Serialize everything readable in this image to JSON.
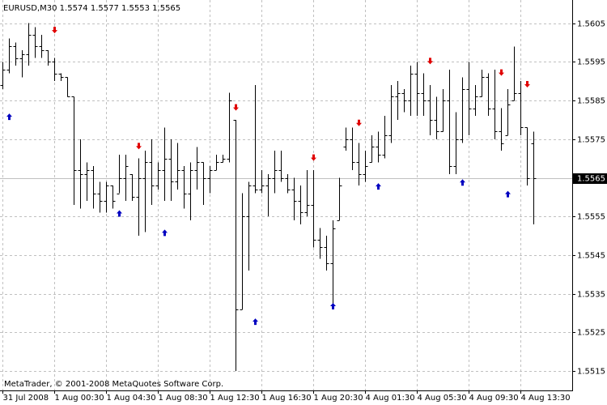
{
  "chart_data": {
    "type": "ohlc",
    "title": "EURUSD,M30  1.5574 1.5577 1.5553 1.5565",
    "footer": "MetaTrader, © 2001-2008 MetaQuotes Software Corp.",
    "categories": [
      "31 Jul 2008",
      null,
      null,
      null,
      null,
      null,
      null,
      null,
      "1 Aug 00:30",
      null,
      null,
      null,
      null,
      null,
      null,
      null,
      "1 Aug 04:30",
      null,
      null,
      null,
      null,
      null,
      null,
      null,
      "1 Aug 08:30",
      null,
      null,
      null,
      null,
      null,
      null,
      null,
      "1 Aug 12:30",
      null,
      null,
      null,
      null,
      null,
      null,
      null,
      "1 Aug 16:30",
      null,
      null,
      null,
      null,
      null,
      null,
      null,
      "1 Aug 20:30",
      null,
      null,
      null,
      null,
      null,
      null,
      null,
      "4 Aug 01:30",
      null,
      null,
      null,
      null,
      null,
      null,
      null,
      "4 Aug 05:30",
      null,
      null,
      null,
      null,
      null,
      null,
      null,
      "4 Aug 09:30",
      null,
      null,
      null,
      null,
      null,
      null,
      null,
      "4 Aug 13:30",
      null,
      null
    ],
    "color": "#000000",
    "open": [
      1.5589,
      1.5593,
      1.5599,
      1.5596,
      1.5597,
      1.5602,
      1.5599,
      1.5598,
      1.5595,
      1.5592,
      1.5591,
      1.5586,
      1.5567,
      1.5566,
      1.5567,
      1.5561,
      1.5559,
      1.5563,
      1.5561,
      1.5565,
      1.5566,
      1.556,
      1.5565,
      1.5569,
      1.5563,
      1.5567,
      1.557,
      1.5564,
      1.5567,
      1.5561,
      1.5567,
      1.5569,
      1.5565,
      1.5567,
      1.5569,
      1.557,
      1.558,
      1.5531,
      1.5555,
      1.5563,
      1.5562,
      1.5563,
      1.5565,
      1.5567,
      1.5565,
      1.5562,
      1.5559,
      1.5556,
      1.5558,
      1.5549,
      1.5547,
      1.5543,
      1.5554,
      1.5573,
      1.5575,
      1.5569,
      1.5566,
      1.5569,
      1.5573,
      1.5571,
      1.5576,
      1.5586,
      1.5587,
      1.5585,
      1.5592,
      1.5587,
      1.5585,
      1.558,
      1.5577,
      1.5585,
      1.5568,
      1.5575,
      1.5588,
      1.5583,
      1.5586,
      1.5591,
      1.5583,
      1.5577,
      1.5576,
      1.5585,
      1.5587,
      1.5578,
      1.5574
    ],
    "high": [
      1.5595,
      1.5601,
      1.56,
      1.5598,
      1.5605,
      1.5604,
      1.5602,
      1.5598,
      1.5596,
      1.5592,
      1.5591,
      1.5586,
      1.5575,
      1.5569,
      1.5568,
      1.5564,
      1.5564,
      1.5563,
      1.5571,
      1.5571,
      1.5566,
      1.557,
      1.5572,
      1.5575,
      1.5569,
      1.5578,
      1.5575,
      1.5574,
      1.5568,
      1.5569,
      1.5573,
      1.5569,
      1.5568,
      1.5571,
      1.5571,
      1.5587,
      1.558,
      1.5561,
      1.5564,
      1.5589,
      1.5567,
      1.5566,
      1.5572,
      1.5572,
      1.5566,
      1.5565,
      1.5563,
      1.5567,
      1.5567,
      1.5552,
      1.555,
      1.5554,
      1.5565,
      1.5578,
      1.5578,
      1.5574,
      1.5572,
      1.5576,
      1.5577,
      1.5581,
      1.5589,
      1.559,
      1.5588,
      1.5594,
      1.5595,
      1.5592,
      1.5589,
      1.5586,
      1.5588,
      1.5593,
      1.5582,
      1.5591,
      1.5595,
      1.5589,
      1.5593,
      1.5592,
      1.5593,
      1.5583,
      1.5588,
      1.5599,
      1.559,
      1.5578,
      1.5577
    ],
    "low": [
      1.5588,
      1.5592,
      1.5594,
      1.5591,
      1.5594,
      1.5596,
      1.5596,
      1.5594,
      1.559,
      1.559,
      1.5586,
      1.5558,
      1.5557,
      1.5559,
      1.5557,
      1.5556,
      1.5556,
      1.5557,
      1.5561,
      1.5559,
      1.5559,
      1.555,
      1.5551,
      1.5558,
      1.5562,
      1.5559,
      1.5559,
      1.5562,
      1.5557,
      1.5554,
      1.5562,
      1.5558,
      1.5561,
      1.5567,
      1.5569,
      1.5569,
      1.5515,
      1.5531,
      1.5541,
      1.5561,
      1.5561,
      1.5555,
      1.5561,
      1.5564,
      1.5561,
      1.5554,
      1.5553,
      1.5555,
      1.5547,
      1.5544,
      1.5541,
      1.5532,
      1.5554,
      1.5572,
      1.5567,
      1.5563,
      1.5564,
      1.5569,
      1.5569,
      1.557,
      1.5574,
      1.558,
      1.5582,
      1.5581,
      1.5581,
      1.5581,
      1.5576,
      1.5575,
      1.5577,
      1.5566,
      1.5566,
      1.5574,
      1.5576,
      1.5581,
      1.5586,
      1.5581,
      1.5575,
      1.5572,
      1.5576,
      1.5585,
      1.5576,
      1.5563,
      1.5553
    ],
    "close": [
      1.5593,
      1.5599,
      1.5596,
      1.5597,
      1.5602,
      1.5599,
      1.5598,
      1.5595,
      1.5592,
      1.5591,
      1.5586,
      1.5567,
      1.5566,
      1.5567,
      1.5561,
      1.5559,
      1.5563,
      1.5559,
      1.5565,
      1.5568,
      1.556,
      1.5565,
      1.5569,
      1.5563,
      1.5567,
      1.557,
      1.5564,
      1.5567,
      1.5561,
      1.5567,
      1.5569,
      1.5565,
      1.5567,
      1.5569,
      1.557,
      1.5585,
      1.5531,
      1.5555,
      1.5563,
      1.5562,
      1.5563,
      1.5565,
      1.5567,
      1.5565,
      1.5562,
      1.5559,
      1.5556,
      1.5558,
      1.5549,
      1.5547,
      1.5543,
      1.5552,
      1.5563,
      1.5575,
      1.5569,
      1.5566,
      1.5568,
      1.5573,
      1.5571,
      1.5576,
      1.5586,
      1.5587,
      1.5585,
      1.5592,
      1.5587,
      1.5585,
      1.558,
      1.5577,
      1.5585,
      1.5568,
      1.5575,
      1.5588,
      1.5583,
      1.5586,
      1.5591,
      1.5583,
      1.5577,
      1.5574,
      1.5584,
      1.5587,
      1.5578,
      1.5565,
      1.5565
    ],
    "arrows_down": {
      "color": "#e00000",
      "x": [
        8,
        21,
        36,
        48,
        55,
        66,
        77,
        81
      ],
      "values": [
        1.5603,
        1.5573,
        1.5583,
        1.557,
        1.5579,
        1.5595,
        1.5592,
        1.5589
      ]
    },
    "arrows_up": {
      "color": "#0000c0",
      "x": [
        1,
        18,
        25,
        39,
        51,
        58,
        71,
        78
      ],
      "values": [
        1.5581,
        1.5556,
        1.5551,
        1.5528,
        1.5532,
        1.5563,
        1.5564,
        1.5561
      ]
    },
    "current_price": 1.5565,
    "ylim": [
      1.551,
      1.5611
    ],
    "yticks": [
      1.5515,
      1.5525,
      1.5535,
      1.5545,
      1.5555,
      1.5565,
      1.5575,
      1.5585,
      1.5595,
      1.5605
    ],
    "grid": true
  }
}
